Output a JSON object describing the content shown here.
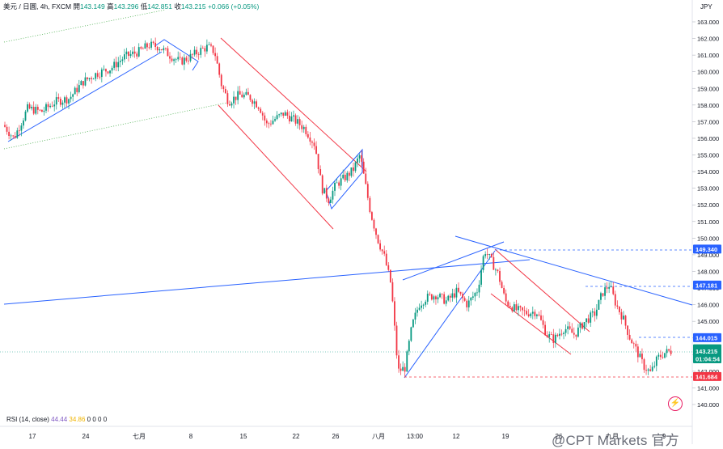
{
  "header": {
    "symbol": "美元 / 日圓, 4h, FXCM",
    "open_label": "開",
    "open": "143.149",
    "high_label": "高",
    "high": "143.296",
    "low_label": "低",
    "low": "142.851",
    "close_label": "收",
    "close": "143.215",
    "change": "+0.066 (+0.05%)",
    "currency": "JPY"
  },
  "rsi": {
    "label": "RSI (14, close)",
    "value1": "44.44",
    "value2": "34.86",
    "zeros": "0 0 0 0"
  },
  "watermark": "@CPT Markets 官方",
  "colors": {
    "up": "#089981",
    "down": "#f23645",
    "blue_line": "#2962ff",
    "red_channel": "#f23645",
    "green_dotted": "#4caf50"
  },
  "chart_data": {
    "type": "candlestick",
    "y_axis": {
      "min": 140.0,
      "max": 163.0,
      "ticks": [
        "140.000",
        "141.000",
        "142.000",
        "143.000",
        "144.000",
        "145.000",
        "146.000",
        "147.000",
        "148.000",
        "149.000",
        "150.000",
        "151.000",
        "152.000",
        "153.000",
        "154.000",
        "155.000",
        "156.000",
        "157.000",
        "158.000",
        "159.000",
        "160.000",
        "161.000",
        "162.000",
        "163.000"
      ]
    },
    "x_ticks": [
      "17",
      "24",
      "七月",
      "8",
      "15",
      "22",
      "26",
      "八月",
      "13:00",
      "12",
      "19",
      "26",
      "九月",
      "9"
    ],
    "price_labels": [
      {
        "text": "149.340",
        "value": 149.34,
        "color": "#2962ff"
      },
      {
        "text": "147.181",
        "value": 147.181,
        "color": "#2962ff"
      },
      {
        "text": "144.015",
        "value": 144.015,
        "color": "#2962ff"
      },
      {
        "text": "USDJPY",
        "value": 143.35,
        "color": "#089981"
      },
      {
        "text": "143.215",
        "value": 143.215,
        "color": "#089981"
      },
      {
        "text": "01:04:54",
        "value": 142.75,
        "color": "#089981"
      },
      {
        "text": "141.684",
        "value": 141.684,
        "color": "#f23645"
      }
    ],
    "price_path": [
      [
        0.005,
        156.8
      ],
      [
        0.02,
        156.0
      ],
      [
        0.04,
        157.8
      ],
      [
        0.06,
        157.6
      ],
      [
        0.08,
        158.2
      ],
      [
        0.1,
        158.4
      ],
      [
        0.12,
        159.4
      ],
      [
        0.14,
        159.9
      ],
      [
        0.16,
        160.2
      ],
      [
        0.18,
        160.9
      ],
      [
        0.2,
        161.2
      ],
      [
        0.215,
        161.6
      ],
      [
        0.23,
        161.5
      ],
      [
        0.245,
        161.0
      ],
      [
        0.26,
        160.6
      ],
      [
        0.275,
        160.9
      ],
      [
        0.29,
        161.3
      ],
      [
        0.3,
        161.5
      ],
      [
        0.31,
        161.2
      ],
      [
        0.32,
        159.2
      ],
      [
        0.33,
        158.2
      ],
      [
        0.345,
        158.6
      ],
      [
        0.36,
        158.5
      ],
      [
        0.375,
        157.9
      ],
      [
        0.385,
        156.8
      ],
      [
        0.395,
        157.1
      ],
      [
        0.41,
        157.5
      ],
      [
        0.425,
        157.1
      ],
      [
        0.44,
        156.6
      ],
      [
        0.455,
        155.6
      ],
      [
        0.465,
        153.0
      ],
      [
        0.475,
        152.3
      ],
      [
        0.485,
        153.2
      ],
      [
        0.5,
        153.7
      ],
      [
        0.51,
        154.1
      ],
      [
        0.52,
        155.0
      ],
      [
        0.527,
        153.4
      ],
      [
        0.535,
        151.6
      ],
      [
        0.545,
        150.0
      ],
      [
        0.555,
        148.9
      ],
      [
        0.565,
        147.2
      ],
      [
        0.575,
        142.0
      ],
      [
        0.585,
        142.2
      ],
      [
        0.595,
        144.7
      ],
      [
        0.605,
        146.0
      ],
      [
        0.615,
        146.4
      ],
      [
        0.63,
        146.6
      ],
      [
        0.645,
        146.2
      ],
      [
        0.66,
        146.8
      ],
      [
        0.675,
        146.0
      ],
      [
        0.69,
        146.9
      ],
      [
        0.7,
        149.3
      ],
      [
        0.71,
        148.6
      ],
      [
        0.72,
        147.8
      ],
      [
        0.73,
        146.2
      ],
      [
        0.745,
        145.7
      ],
      [
        0.76,
        145.5
      ],
      [
        0.775,
        145.6
      ],
      [
        0.79,
        144.2
      ],
      [
        0.8,
        143.9
      ],
      [
        0.815,
        144.6
      ],
      [
        0.83,
        144.2
      ],
      [
        0.845,
        145.0
      ],
      [
        0.86,
        145.5
      ],
      [
        0.87,
        146.7
      ],
      [
        0.88,
        147.2
      ],
      [
        0.89,
        146.0
      ],
      [
        0.9,
        145.2
      ],
      [
        0.91,
        144.0
      ],
      [
        0.92,
        143.2
      ],
      [
        0.93,
        142.3
      ],
      [
        0.94,
        141.9
      ],
      [
        0.95,
        142.8
      ],
      [
        0.96,
        143.1
      ],
      [
        0.967,
        143.2
      ]
    ]
  }
}
